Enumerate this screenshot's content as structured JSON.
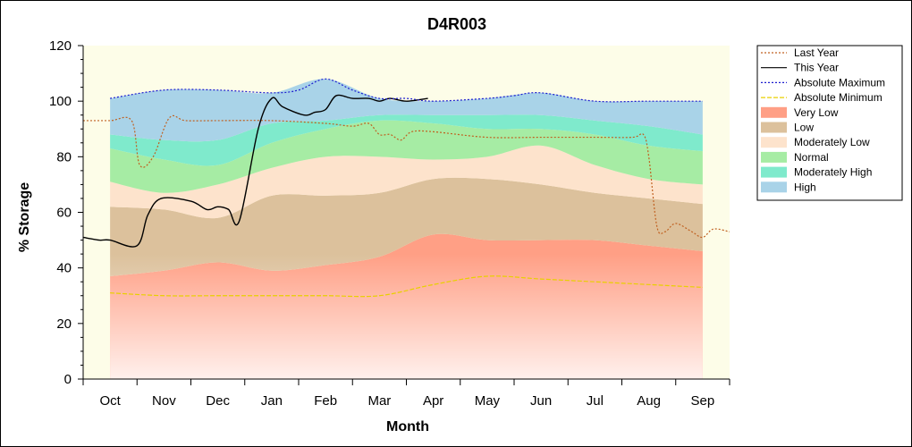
{
  "chart_data": {
    "type": "area",
    "title": "D4R003",
    "xlabel": "Month",
    "ylabel": "% Storage",
    "ylim": [
      0,
      120
    ],
    "yticks": [
      0,
      20,
      40,
      60,
      80,
      100,
      120
    ],
    "categories": [
      "Oct",
      "Nov",
      "Dec",
      "Jan",
      "Feb",
      "Mar",
      "Apr",
      "May",
      "Jun",
      "Jul",
      "Aug",
      "Sep"
    ],
    "x": [
      0,
      1,
      2,
      3,
      4,
      5,
      6,
      7,
      8,
      9,
      10,
      11
    ],
    "legend_position": "right",
    "grid": false,
    "bands": [
      {
        "name": "Very Low",
        "color": "#ff9f85",
        "lower": [
          0,
          0,
          0,
          0,
          0,
          0,
          0,
          0,
          0,
          0,
          0,
          0
        ],
        "upper": [
          37,
          39,
          42,
          39,
          41,
          44,
          52,
          50,
          50,
          50,
          48,
          46
        ]
      },
      {
        "name": "Low",
        "color": "#dcc19c",
        "lower": [
          37,
          39,
          42,
          39,
          41,
          44,
          52,
          50,
          50,
          50,
          48,
          46
        ],
        "upper": [
          62,
          61,
          58,
          66,
          66,
          67,
          72,
          72,
          70,
          67,
          65,
          63
        ]
      },
      {
        "name": "Moderately Low",
        "color": "#fde3cc",
        "lower": [
          62,
          61,
          58,
          66,
          66,
          67,
          72,
          72,
          70,
          67,
          65,
          63
        ],
        "upper": [
          71,
          67,
          70,
          76,
          80,
          80,
          79,
          80,
          84,
          77,
          72,
          70
        ]
      },
      {
        "name": "Normal",
        "color": "#a6eca4",
        "lower": [
          71,
          67,
          70,
          76,
          80,
          80,
          79,
          80,
          84,
          77,
          72,
          70
        ],
        "upper": [
          83,
          79,
          77,
          85,
          90,
          93,
          92,
          90,
          90,
          88,
          84,
          82
        ]
      },
      {
        "name": "Moderately High",
        "color": "#7feacc",
        "lower": [
          83,
          79,
          77,
          85,
          90,
          93,
          92,
          90,
          90,
          88,
          84,
          82
        ],
        "upper": [
          88,
          86,
          86,
          92,
          93,
          95,
          95,
          95,
          95,
          93,
          91,
          88
        ]
      },
      {
        "name": "High",
        "color": "#a9d3e8",
        "lower": [
          88,
          86,
          86,
          92,
          93,
          95,
          95,
          95,
          95,
          93,
          91,
          88
        ],
        "upper": [
          101,
          104,
          104,
          103,
          108,
          101,
          100,
          101,
          103,
          100,
          100,
          100
        ]
      }
    ],
    "series": [
      {
        "name": "Last Year",
        "color": "#c06020",
        "dash": "2,2",
        "x": [
          -0.5,
          0,
          0.4,
          0.55,
          0.8,
          1.1,
          1.4,
          2,
          3,
          4,
          4.5,
          4.8,
          5,
          5.2,
          5.4,
          5.6,
          6,
          7,
          8,
          9,
          9.7,
          9.9,
          10,
          10.15,
          10.3,
          10.5,
          10.8,
          11,
          11.2,
          11.5
        ],
        "values": [
          93,
          93,
          93,
          77,
          80,
          94,
          93,
          93,
          93,
          92,
          91,
          92,
          88,
          88,
          86,
          89,
          89,
          87,
          87,
          87,
          87,
          88,
          80,
          55,
          53,
          56,
          53,
          51,
          54,
          53
        ]
      },
      {
        "name": "This Year",
        "color": "#000000",
        "dash": "",
        "x": [
          -0.5,
          -0.2,
          0,
          0.5,
          0.7,
          0.95,
          1.5,
          1.8,
          2,
          2.2,
          2.4,
          2.75,
          3,
          3.2,
          3.6,
          3.8,
          4,
          4.2,
          4.5,
          4.8,
          5,
          5.2,
          5.5,
          5.9
        ],
        "values": [
          51,
          50,
          50,
          48,
          59,
          65,
          64,
          61,
          62,
          61,
          57,
          90,
          101,
          98,
          95,
          96,
          97,
          102,
          101,
          101,
          100,
          101,
          100,
          101
        ]
      },
      {
        "name": "Absolute Maximum",
        "color": "#1c1ccf",
        "dash": "2,2",
        "x": [
          0,
          1,
          2,
          3,
          3.5,
          4,
          4.5,
          5,
          5.5,
          6,
          7,
          7.5,
          8,
          9,
          10,
          11
        ],
        "values": [
          101,
          104,
          104,
          103,
          104,
          108,
          104,
          101,
          101,
          100,
          101,
          102,
          103,
          100,
          100,
          100
        ]
      },
      {
        "name": "Absolute Minimum",
        "color": "#e8d000",
        "dash": "5,2",
        "x": [
          0,
          1,
          2,
          3,
          4,
          5,
          6,
          7,
          8,
          9,
          10,
          11
        ],
        "values": [
          31,
          30,
          30,
          30,
          30,
          30,
          34,
          37,
          36,
          35,
          34,
          33
        ]
      }
    ],
    "legend": [
      {
        "label": "Last Year",
        "kind": "line",
        "color": "#c06020",
        "dash": "2,2"
      },
      {
        "label": "This Year",
        "kind": "line",
        "color": "#000000",
        "dash": ""
      },
      {
        "label": "Absolute Maximum",
        "kind": "line",
        "color": "#1c1ccf",
        "dash": "2,2"
      },
      {
        "label": "Absolute Minimum",
        "kind": "line",
        "color": "#e8d000",
        "dash": "5,2"
      },
      {
        "label": "Very Low",
        "kind": "band",
        "color": "#ff9f85"
      },
      {
        "label": "Low",
        "kind": "band",
        "color": "#dcc19c"
      },
      {
        "label": "Moderately Low",
        "kind": "band",
        "color": "#fde3cc"
      },
      {
        "label": "Normal",
        "kind": "band",
        "color": "#a6eca4"
      },
      {
        "label": "Moderately High",
        "kind": "band",
        "color": "#7feacc"
      },
      {
        "label": "High",
        "kind": "band",
        "color": "#a9d3e8"
      }
    ],
    "colors": {
      "plot_background": "#fdfde8",
      "frame": "#000000"
    }
  }
}
